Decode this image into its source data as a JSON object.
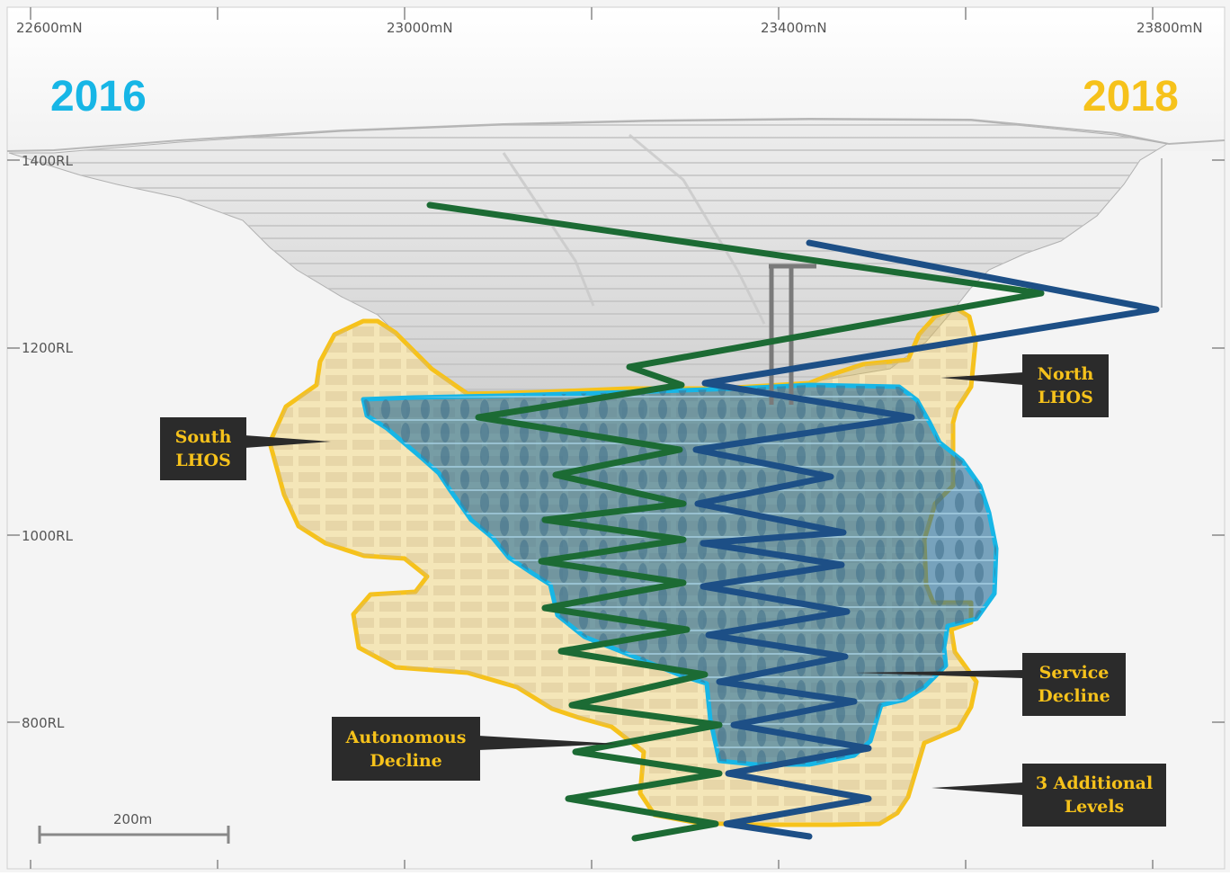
{
  "years": {
    "left": "2016",
    "right": "2018"
  },
  "axis": {
    "northings": [
      "22600mN",
      "23000mN",
      "23400mN",
      "23800mN"
    ],
    "rls": [
      "1400RL",
      "1200RL",
      "1000RL",
      "800RL"
    ]
  },
  "scale_bar": {
    "label": "200m"
  },
  "callouts": {
    "south_lhos": [
      "South",
      "LHOS"
    ],
    "north_lhos": [
      "North",
      "LHOS"
    ],
    "service_decline": [
      "Service",
      "Decline"
    ],
    "autonomous_decline": [
      "Autonomous",
      "Decline"
    ],
    "additional_levels": [
      "3 Additional",
      "Levels"
    ]
  },
  "colors": {
    "year_2016": "#17b6e6",
    "year_2018": "#f6c21b",
    "autonomous_decline": "#1c6b34",
    "service_decline": "#1d4f86",
    "callout_bg": "#2b2b2b",
    "callout_text": "#f6c21b"
  }
}
